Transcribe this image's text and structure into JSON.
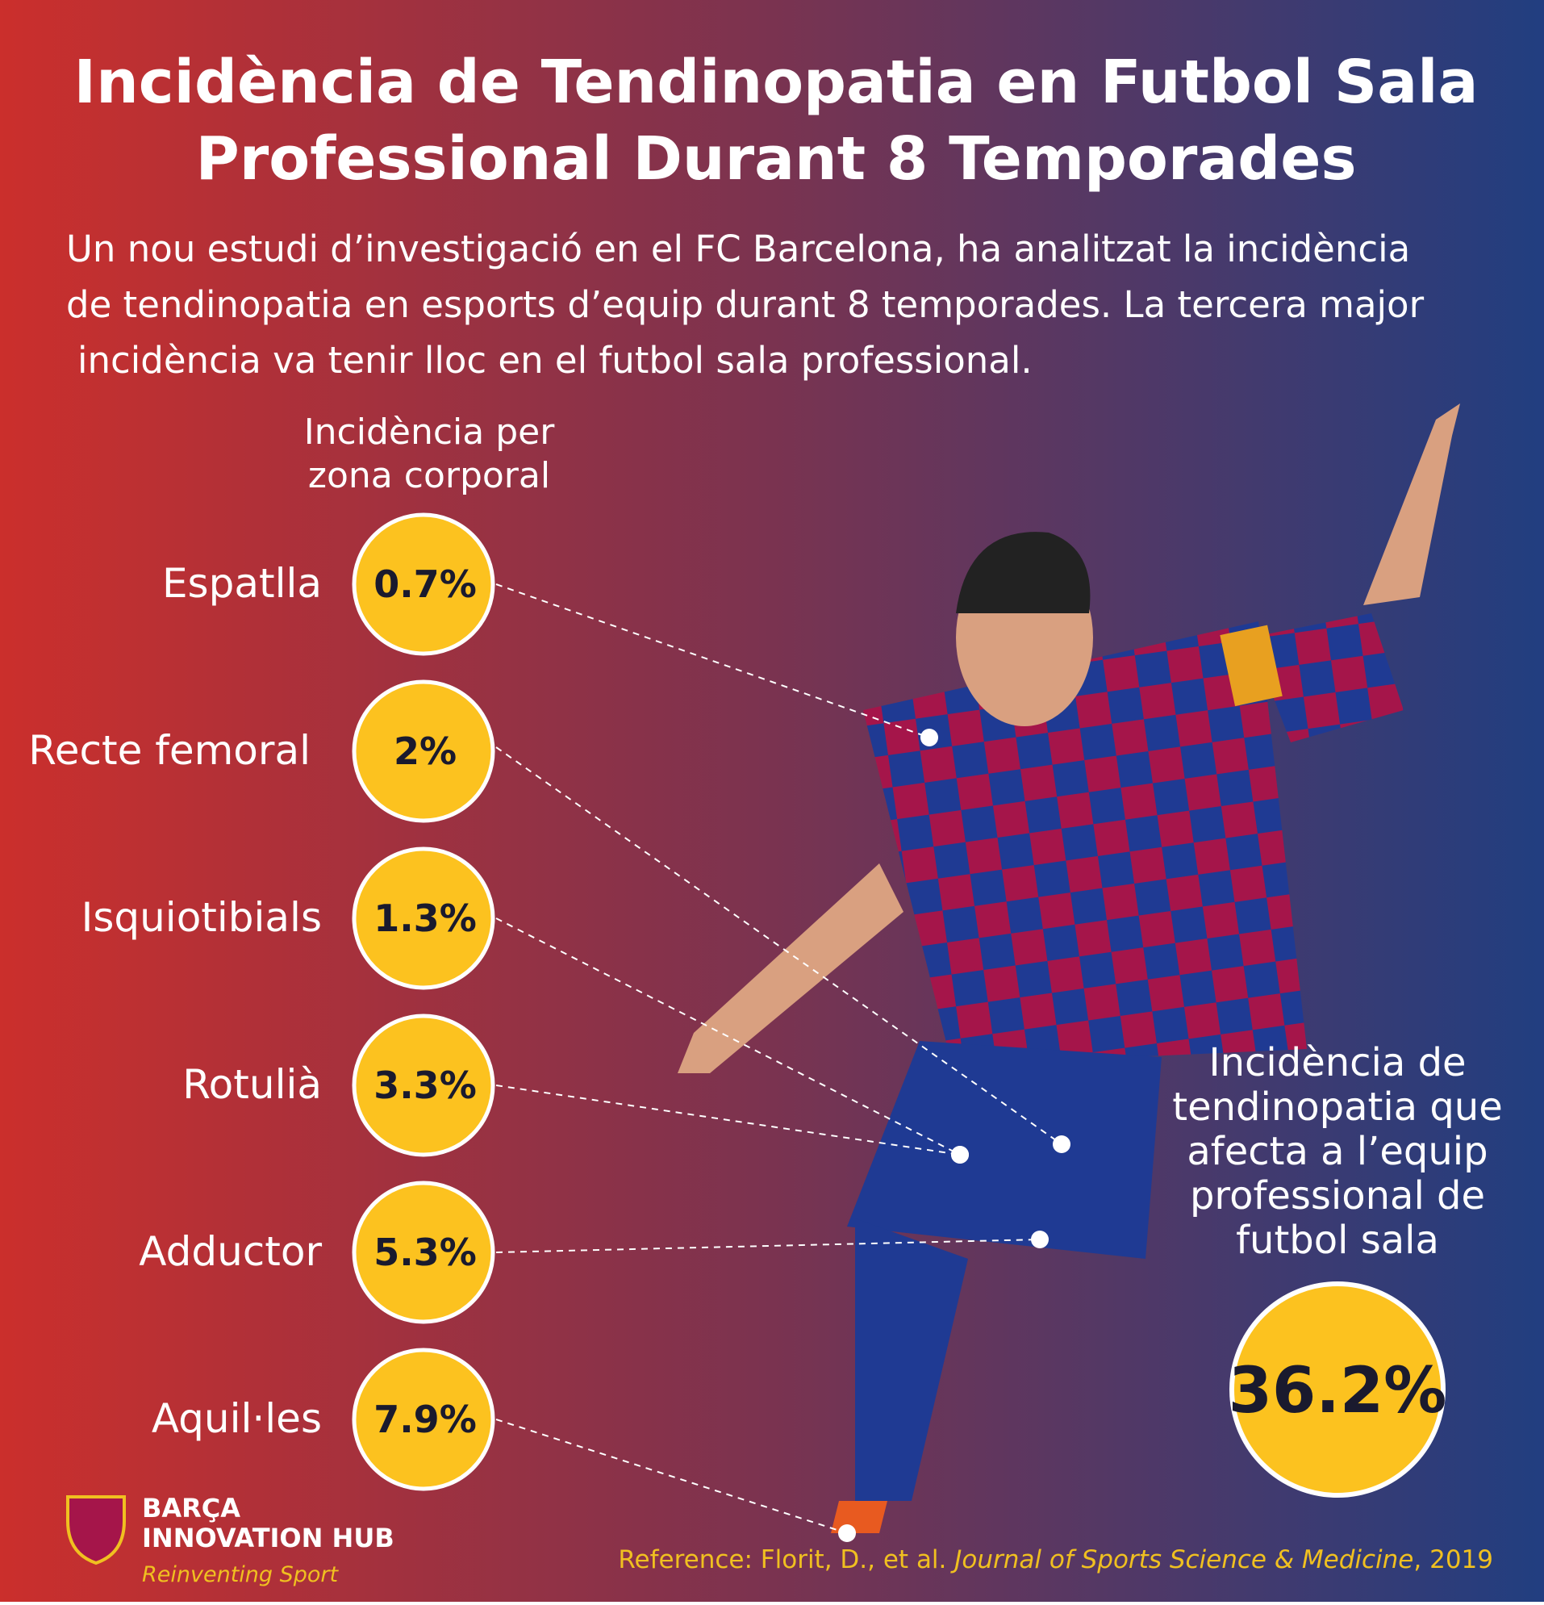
{
  "header": {
    "title_lines": [
      "Incidència de Tendinopatia en Futbol Sala",
      "Professional Durant 8 Temporades"
    ],
    "intro_lines": [
      "Un nou estudi d’investigació en el FC Barcelona, ha analitzat la incidència",
      "de tendinopatia en esports d’equip durant 8 temporades. La tercera major",
      "incidència va tenir lloc en el futbol sala professional."
    ]
  },
  "body_zones": {
    "heading_lines": [
      "Incidència per",
      "zona corporal"
    ],
    "items": [
      {
        "label": "Espatlla",
        "value": "0.7%"
      },
      {
        "label": "Recte femoral",
        "value": "2%"
      },
      {
        "label": "Isquiotibials",
        "value": "1.3%"
      },
      {
        "label": "Rotulià",
        "value": "3.3%"
      },
      {
        "label": "Adductor",
        "value": "5.3%"
      },
      {
        "label": "Aquil·les",
        "value": "7.9%"
      }
    ]
  },
  "team_total": {
    "caption_lines": [
      "Incidència de",
      "tendinopatia que",
      "afecta a l’equip",
      "professional de",
      "futbol sala"
    ],
    "value": "36.2%"
  },
  "footer": {
    "logo_lines": [
      "BARÇA",
      "INNOVATION HUB"
    ],
    "tagline": "Reinventing Sport",
    "reference": {
      "prefix": "Reference: Florit, D., et al. ",
      "journal": "Journal of Sports Science & Medicine",
      "suffix": ", 2019"
    }
  }
}
